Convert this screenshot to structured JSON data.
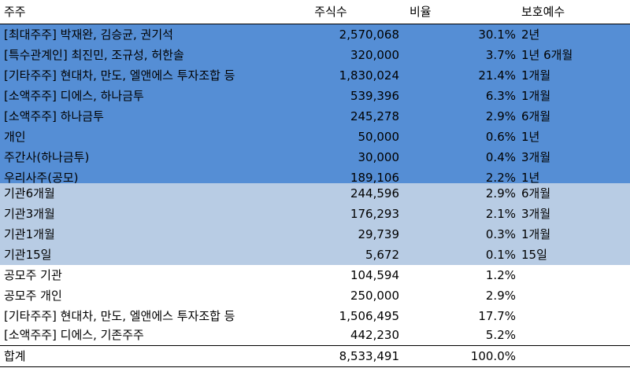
{
  "header": {
    "holder": "주주",
    "shares": "주식수",
    "ratio": "비율",
    "lockup": "보호예수"
  },
  "rows": [
    {
      "holder": "[최대주주] 박재완, 김승균, 권기석",
      "shares": "2,570,068",
      "ratio": "30.1%",
      "lockup": "2년"
    },
    {
      "holder": "[특수관계인] 최진민, 조규성, 허한솔",
      "shares": "320,000",
      "ratio": "3.7%",
      "lockup": "1년 6개월"
    },
    {
      "holder": "[기타주주] 현대차, 만도, 엘앤에스 투자조합 등",
      "shares": "1,830,024",
      "ratio": "21.4%",
      "lockup": "1개월"
    },
    {
      "holder": "[소액주주] 디에스, 하나금투",
      "shares": "539,396",
      "ratio": "6.3%",
      "lockup": "1개월"
    },
    {
      "holder": "[소액주주] 하나금투",
      "shares": "245,278",
      "ratio": "2.9%",
      "lockup": "6개월"
    },
    {
      "holder": "개인",
      "shares": "50,000",
      "ratio": "0.6%",
      "lockup": "1년"
    },
    {
      "holder": "주간사(하나금투)",
      "shares": "30,000",
      "ratio": "0.4%",
      "lockup": "3개월"
    },
    {
      "holder": "우리사주(공모)",
      "shares": "189,106",
      "ratio": "2.2%",
      "lockup": "1년"
    },
    {
      "holder": "기관6개월",
      "shares": "244,596",
      "ratio": "2.9%",
      "lockup": "6개월"
    },
    {
      "holder": "기관3개월",
      "shares": "176,293",
      "ratio": "2.1%",
      "lockup": "3개월"
    },
    {
      "holder": "기관1개월",
      "shares": "29,739",
      "ratio": "0.3%",
      "lockup": "1개월"
    },
    {
      "holder": "기관15일",
      "shares": "5,672",
      "ratio": "0.1%",
      "lockup": "15일"
    },
    {
      "holder": "공모주 기관",
      "shares": "104,594",
      "ratio": "1.2%",
      "lockup": ""
    },
    {
      "holder": "공모주 개인",
      "shares": "250,000",
      "ratio": "2.9%",
      "lockup": ""
    },
    {
      "holder": "[기타주주] 현대차, 만도, 엘앤에스 투자조합 등",
      "shares": "1,506,495",
      "ratio": "17.7%",
      "lockup": ""
    },
    {
      "holder": "[소액주주] 디에스, 기존주주",
      "shares": "442,230",
      "ratio": "5.2%",
      "lockup": ""
    }
  ],
  "total": {
    "holder": "합계",
    "shares": "8,533,491",
    "ratio": "100.0%",
    "lockup": ""
  },
  "colors": {
    "dark_blue": "#558ed5",
    "light_blue": "#b8cce4"
  }
}
